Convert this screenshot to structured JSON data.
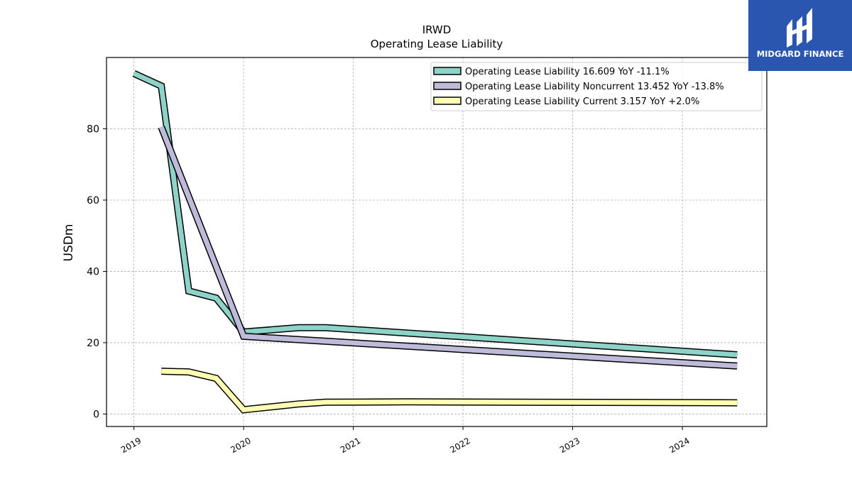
{
  "chart_data": {
    "type": "line",
    "title": "IRWD",
    "subtitle": "Operating Lease Liability",
    "xlabel": "",
    "ylabel": "USDm",
    "xlim": [
      2018.75,
      2024.77
    ],
    "ylim": [
      -3.5,
      100
    ],
    "x_ticks": [
      2019,
      2020,
      2021,
      2022,
      2023,
      2024
    ],
    "x_tick_labels": [
      "2019",
      "2020",
      "2021",
      "2022",
      "2023",
      "2024"
    ],
    "y_ticks": [
      0,
      20,
      40,
      60,
      80
    ],
    "y_tick_labels": [
      "0",
      "20",
      "40",
      "60",
      "80"
    ],
    "grid": true,
    "legend_position": "top-right",
    "series": [
      {
        "name": "Operating Lease Liability",
        "legend_label": "Operating Lease Liability  16.609 YoY -11.1%",
        "color": "#8dd3c7",
        "x": [
          2019.0,
          2019.25,
          2019.5,
          2019.75,
          2020.0,
          2020.5,
          2020.75,
          2024.5
        ],
        "y": [
          95.5,
          92.0,
          34.5,
          32.5,
          23.0,
          24.2,
          24.2,
          16.609
        ]
      },
      {
        "name": "Operating Lease Liability Noncurrent",
        "legend_label": "Operating Lease Liability Noncurrent  13.452 YoY -13.8%",
        "color": "#bebada",
        "x": [
          2019.25,
          2020.0,
          2024.5
        ],
        "y": [
          80.5,
          21.8,
          13.452
        ]
      },
      {
        "name": "Operating Lease Liability Current",
        "legend_label": "Operating Lease Liability Current  3.157 YoY +2.0%",
        "color": "#ffffb3",
        "x": [
          2019.25,
          2019.5,
          2019.75,
          2020.0,
          2020.5,
          2020.75,
          2021.5,
          2024.5
        ],
        "y": [
          12.0,
          11.8,
          10.0,
          1.2,
          2.8,
          3.3,
          3.4,
          3.157
        ]
      }
    ]
  },
  "logo": {
    "text": "MIDGARD FINANCE",
    "bg_color": "#2b56b0"
  }
}
